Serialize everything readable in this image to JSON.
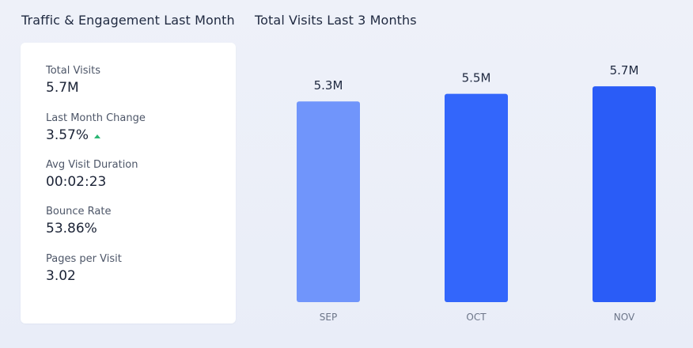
{
  "left_panel": {
    "title": "Traffic & Engagement Last Month",
    "stats": [
      {
        "label": "Total Visits",
        "value": "5.7M"
      },
      {
        "label": "Last Month Change",
        "value": "3.57%",
        "trend": "up"
      },
      {
        "label": "Avg Visit Duration",
        "value": "00:02:23"
      },
      {
        "label": "Bounce Rate",
        "value": "53.86%"
      },
      {
        "label": "Pages per Visit",
        "value": "3.02"
      }
    ]
  },
  "colors": {
    "bar_light": "#7095fb",
    "bar_mid": "#3366fb",
    "bar_dark": "#2a5cf7",
    "trend_up": "#2bb673"
  },
  "chart_data": {
    "type": "bar",
    "title": "Total Visits Last 3 Months",
    "categories": [
      "SEP",
      "OCT",
      "NOV"
    ],
    "values": [
      5.3,
      5.5,
      5.7
    ],
    "data_labels": [
      "5.3M",
      "5.5M",
      "5.7M"
    ],
    "unit": "M",
    "ylim": [
      0,
      6.85
    ],
    "grid": false,
    "legend": "none"
  }
}
